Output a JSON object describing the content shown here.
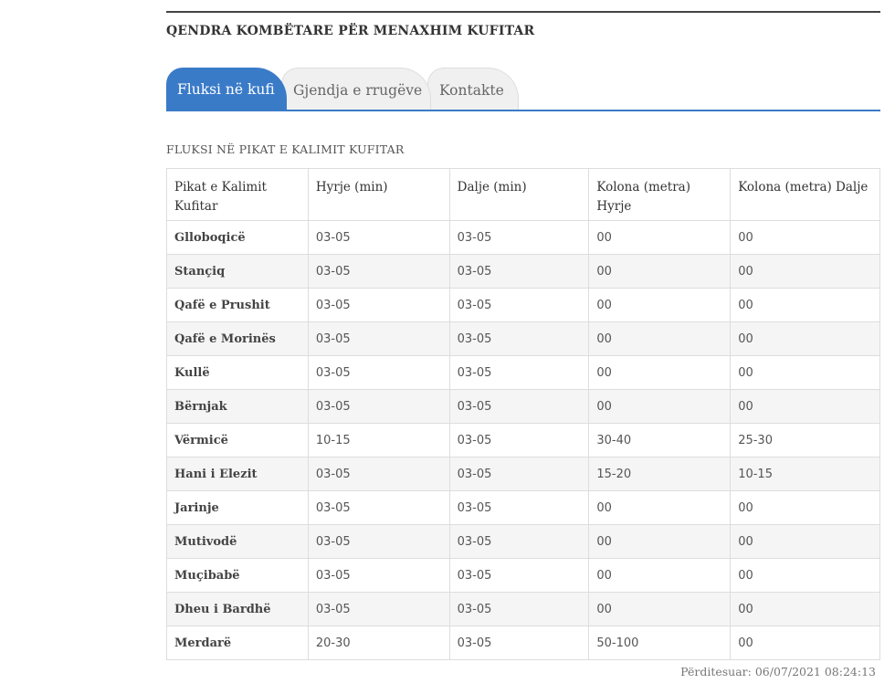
{
  "header": {
    "title": "QENDRA KOMBËTARE PËR MENAXHIM KUFITAR"
  },
  "tabs": [
    {
      "label": "Fluksi në kufi",
      "active": true
    },
    {
      "label": "Gjendja e rrugëve",
      "active": false
    },
    {
      "label": "Kontakte",
      "active": false
    }
  ],
  "section": {
    "title": "FLUKSI NË PIKAT E KALIMIT KUFITAR"
  },
  "table": {
    "headers": [
      "Pikat e Kalimit Kufitar",
      "Hyrje (min)",
      "Dalje (min)",
      "Kolona (metra) Hyrje",
      "Kolona (metra) Dalje"
    ],
    "rows": [
      [
        "Glloboqicë",
        "03-05",
        "03-05",
        "00",
        "00"
      ],
      [
        "Stançiq",
        "03-05",
        "03-05",
        "00",
        "00"
      ],
      [
        "Qafë e Prushit",
        "03-05",
        "03-05",
        "00",
        "00"
      ],
      [
        "Qafë e Morinës",
        "03-05",
        "03-05",
        "00",
        "00"
      ],
      [
        "Kullë",
        "03-05",
        "03-05",
        "00",
        "00"
      ],
      [
        "Bërnjak",
        "03-05",
        "03-05",
        "00",
        "00"
      ],
      [
        "Vërmicë",
        "10-15",
        "03-05",
        "30-40",
        "25-30"
      ],
      [
        "Hani i Elezit",
        "03-05",
        "03-05",
        "15-20",
        "10-15"
      ],
      [
        "Jarinje",
        "03-05",
        "03-05",
        "00",
        "00"
      ],
      [
        "Mutivodë",
        "03-05",
        "03-05",
        "00",
        "00"
      ],
      [
        "Muçibabë",
        "03-05",
        "03-05",
        "00",
        "00"
      ],
      [
        "Dheu i Bardhë",
        "03-05",
        "03-05",
        "00",
        "00"
      ],
      [
        "Merdarë",
        "20-30",
        "03-05",
        "50-100",
        "00"
      ]
    ]
  },
  "footer": {
    "updated": "Përditesuar: 06/07/2021 08:24:13"
  },
  "colors": {
    "accent": "#3a7bc8",
    "stripe": "#f5f5f5",
    "border": "#dddddd"
  }
}
